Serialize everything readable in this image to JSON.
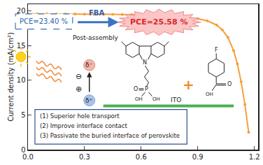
{
  "chart_data": {
    "type": "line",
    "y_label": "Current density (mA/cm²)",
    "x": [
      0,
      0.05,
      0.1,
      0.15,
      0.2,
      0.25,
      0.3,
      0.35,
      0.4,
      0.45,
      0.5,
      0.55,
      0.6,
      0.65,
      0.7,
      0.75,
      0.8,
      0.85,
      0.9,
      0.95,
      1.0,
      1.03,
      1.06,
      1.09,
      1.11,
      1.13,
      1.15,
      1.17
    ],
    "values": [
      19.6,
      19.6,
      19.6,
      19.59,
      19.58,
      19.58,
      19.57,
      19.56,
      19.55,
      19.54,
      19.52,
      19.5,
      19.48,
      19.45,
      19.4,
      19.35,
      19.25,
      19.1,
      18.9,
      18.6,
      18.0,
      17.3,
      16.2,
      14.3,
      12.4,
      9.8,
      6.5,
      2.5
    ],
    "color": "#f5a03c",
    "marker": "circle",
    "xlim": [
      0,
      1.22
    ],
    "ylim": [
      0,
      21
    ],
    "xticks": [
      {
        "value": 0,
        "label": "0.0"
      },
      {
        "value": 0.3,
        "label": "0.3"
      },
      {
        "value": 0.6,
        "label": "0.6"
      },
      {
        "value": 0.9,
        "label": "0.9"
      },
      {
        "value": 1.2,
        "label": "1.2"
      }
    ],
    "yticks": [
      0,
      5,
      10,
      15,
      20
    ],
    "annotations": {
      "pce_before": "PCE=23.40 %",
      "additive": "FBA",
      "pce_after": "PCE=25.58 %",
      "process": "Post-assembly",
      "delta_minus": "δ⁻",
      "delta_plus": "δ⁺",
      "charge_minus": "⊖",
      "charge_plus": "⊕",
      "substrate": "ITO",
      "plus": "+",
      "carbazole_labels": {
        "n": "N",
        "p": "P",
        "o": "O",
        "oh1": "OH",
        "oh2": "OH"
      },
      "fba_labels": {
        "f": "F",
        "o": "O",
        "oh": "OH"
      },
      "benefits": [
        "(1) Superior hole transport",
        "(2) Improve interface contact",
        "(3) Passivate the buried interface of perovskite"
      ]
    }
  }
}
